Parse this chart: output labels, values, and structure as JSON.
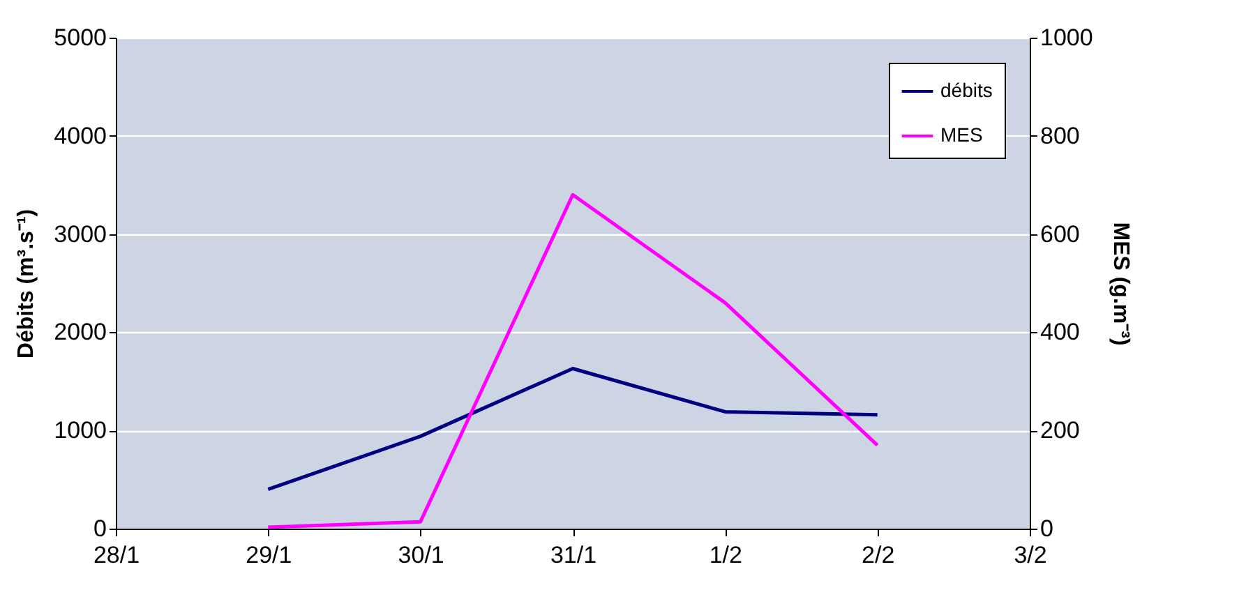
{
  "chart_data": {
    "type": "line",
    "xlabel": null,
    "ylabel": "Débits (m³.s⁻¹)",
    "y2label": "MES (g.m⁻³)",
    "categories": [
      "28/1",
      "29/1",
      "30/1",
      "31/1",
      "1/2",
      "2/2",
      "3/2"
    ],
    "series": [
      {
        "name": "débits",
        "color": "#000080",
        "values": [
          null,
          400,
          940,
          1630,
          1190,
          1160,
          null
        ]
      },
      {
        "name": "MES",
        "color": "#ff00ff",
        "axis": "y2",
        "values": [
          null,
          3,
          14,
          680,
          460,
          170,
          null
        ]
      }
    ],
    "ylim": [
      0,
      5000
    ],
    "yticks": [
      0,
      1000,
      2000,
      3000,
      4000,
      5000
    ],
    "y2lim": [
      0,
      1000
    ],
    "y2ticks": [
      0,
      200,
      400,
      600,
      800,
      1000
    ],
    "grid": "y",
    "legend": "top right",
    "line_style": "solid",
    "marker": "none"
  }
}
